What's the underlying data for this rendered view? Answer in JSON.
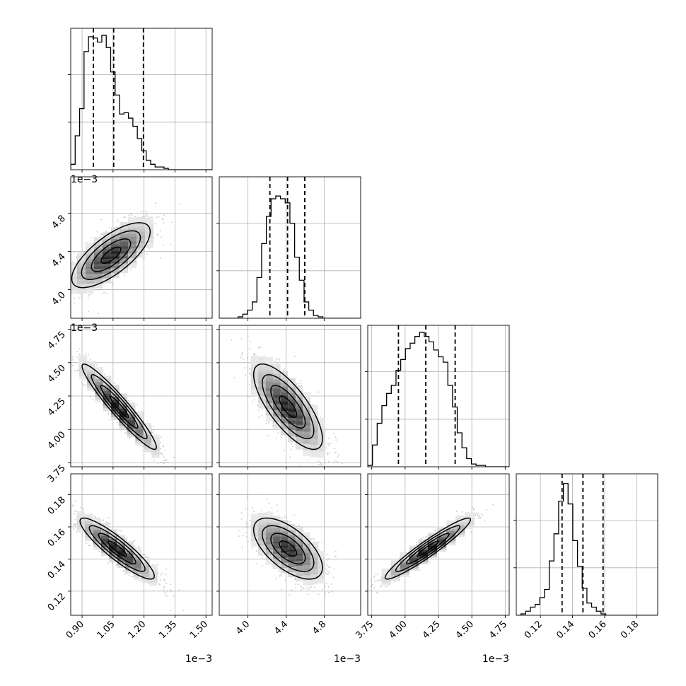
{
  "chart_data": {
    "type": "corner",
    "figure_size": [
      970,
      970
    ],
    "variables": [
      {
        "label": "",
        "tick_labels": [
          "0.90",
          "1.05",
          "1.20",
          "1.35",
          "1.50"
        ],
        "ticks": [
          0.9,
          1.05,
          1.2,
          1.35,
          1.5
        ],
        "range": [
          0.845,
          1.53
        ],
        "offset_text": "1e−3"
      },
      {
        "label": "",
        "tick_labels": [
          "4.0",
          "4.4",
          "4.8"
        ],
        "ticks": [
          4.0,
          4.4,
          4.8
        ],
        "range": [
          3.7,
          5.18
        ],
        "offset_text": "1e−3"
      },
      {
        "label": "",
        "tick_labels": [
          "3.75",
          "4.00",
          "4.25",
          "4.50",
          "4.75"
        ],
        "ticks": [
          3.75,
          4.0,
          4.25,
          4.5,
          4.75
        ],
        "range": [
          3.72,
          4.78
        ],
        "offset_text": "1e−3"
      },
      {
        "label": "",
        "tick_labels": [
          "0.12",
          "0.14",
          "0.16",
          "0.18"
        ],
        "ticks": [
          0.12,
          0.14,
          0.16,
          0.18
        ],
        "range": [
          0.105,
          0.193
        ],
        "offset_text": ""
      }
    ],
    "quantiles": [
      [
        0.955,
        1.053,
        1.197
      ],
      [
        4.23,
        4.415,
        4.595
      ],
      [
        3.95,
        4.155,
        4.375
      ],
      [
        0.1335,
        0.1465,
        0.159
      ]
    ],
    "marginals": [
      {
        "variable": 0,
        "bin_start": 0.845,
        "bin_width": 0.0215,
        "counts": [
          0.04,
          0.25,
          0.45,
          0.87,
          0.98,
          0.97,
          0.94,
          0.99,
          0.9,
          0.72,
          0.55,
          0.41,
          0.42,
          0.38,
          0.32,
          0.23,
          0.14,
          0.07,
          0.04,
          0.02,
          0.02,
          0.01,
          0.0,
          0.0,
          0.0,
          0.0,
          0.0,
          0.0,
          0.0,
          0.0,
          0.0,
          0.0
        ]
      },
      {
        "variable": 1,
        "bin_start": 3.7,
        "bin_width": 0.0493,
        "counts": [
          0.0,
          0.0,
          0.0,
          0.0,
          0.01,
          0.03,
          0.06,
          0.12,
          0.3,
          0.55,
          0.75,
          0.88,
          0.9,
          0.88,
          0.85,
          0.7,
          0.45,
          0.28,
          0.12,
          0.06,
          0.02,
          0.01,
          0.0,
          0.0,
          0.0,
          0.0,
          0.0,
          0.0,
          0.0,
          0.0
        ]
      },
      {
        "variable": 2,
        "bin_start": 3.72,
        "bin_width": 0.0353,
        "counts": [
          0.01,
          0.16,
          0.32,
          0.45,
          0.54,
          0.6,
          0.71,
          0.79,
          0.87,
          0.91,
          0.96,
          0.99,
          0.96,
          0.92,
          0.86,
          0.81,
          0.77,
          0.6,
          0.44,
          0.25,
          0.14,
          0.06,
          0.02,
          0.01,
          0.01,
          0.0,
          0.0,
          0.0,
          0.0,
          0.0
        ]
      },
      {
        "variable": 3,
        "bin_start": 0.105,
        "bin_width": 0.00293,
        "counts": [
          0.0,
          0.01,
          0.03,
          0.06,
          0.08,
          0.13,
          0.19,
          0.4,
          0.6,
          0.84,
          0.97,
          0.82,
          0.55,
          0.36,
          0.2,
          0.09,
          0.06,
          0.03,
          0.01,
          0.0,
          0.0,
          0.0,
          0.0,
          0.0,
          0.0,
          0.0,
          0.0,
          0.0,
          0.0,
          0.0
        ]
      }
    ],
    "joints": [
      {
        "x": 0,
        "y": 1,
        "rho": 0.72,
        "center": [
          1.04,
          4.36
        ],
        "sigma": [
          0.095,
          0.17
        ]
      },
      {
        "x": 0,
        "y": 2,
        "rho": -0.95,
        "center": [
          1.08,
          4.17
        ],
        "sigma": [
          0.09,
          0.16
        ]
      },
      {
        "x": 1,
        "y": 2,
        "rho": -0.75,
        "center": [
          4.42,
          4.17
        ],
        "sigma": [
          0.18,
          0.16
        ]
      },
      {
        "x": 0,
        "y": 3,
        "rho": -0.9,
        "center": [
          1.07,
          0.1465
        ],
        "sigma": [
          0.09,
          0.0095
        ]
      },
      {
        "x": 1,
        "y": 3,
        "rho": -0.62,
        "center": [
          4.42,
          0.1465
        ],
        "sigma": [
          0.18,
          0.0095
        ]
      },
      {
        "x": 2,
        "y": 3,
        "rho": 0.95,
        "center": [
          4.17,
          0.1465
        ],
        "sigma": [
          0.16,
          0.0095
        ]
      }
    ],
    "contour_levels_sigma": [
      0.5,
      1.0,
      1.5,
      2.0
    ],
    "grid": true,
    "colors": {
      "line": "#000000",
      "grid": "#b0b0b0",
      "points": "#9a9a9a"
    }
  }
}
